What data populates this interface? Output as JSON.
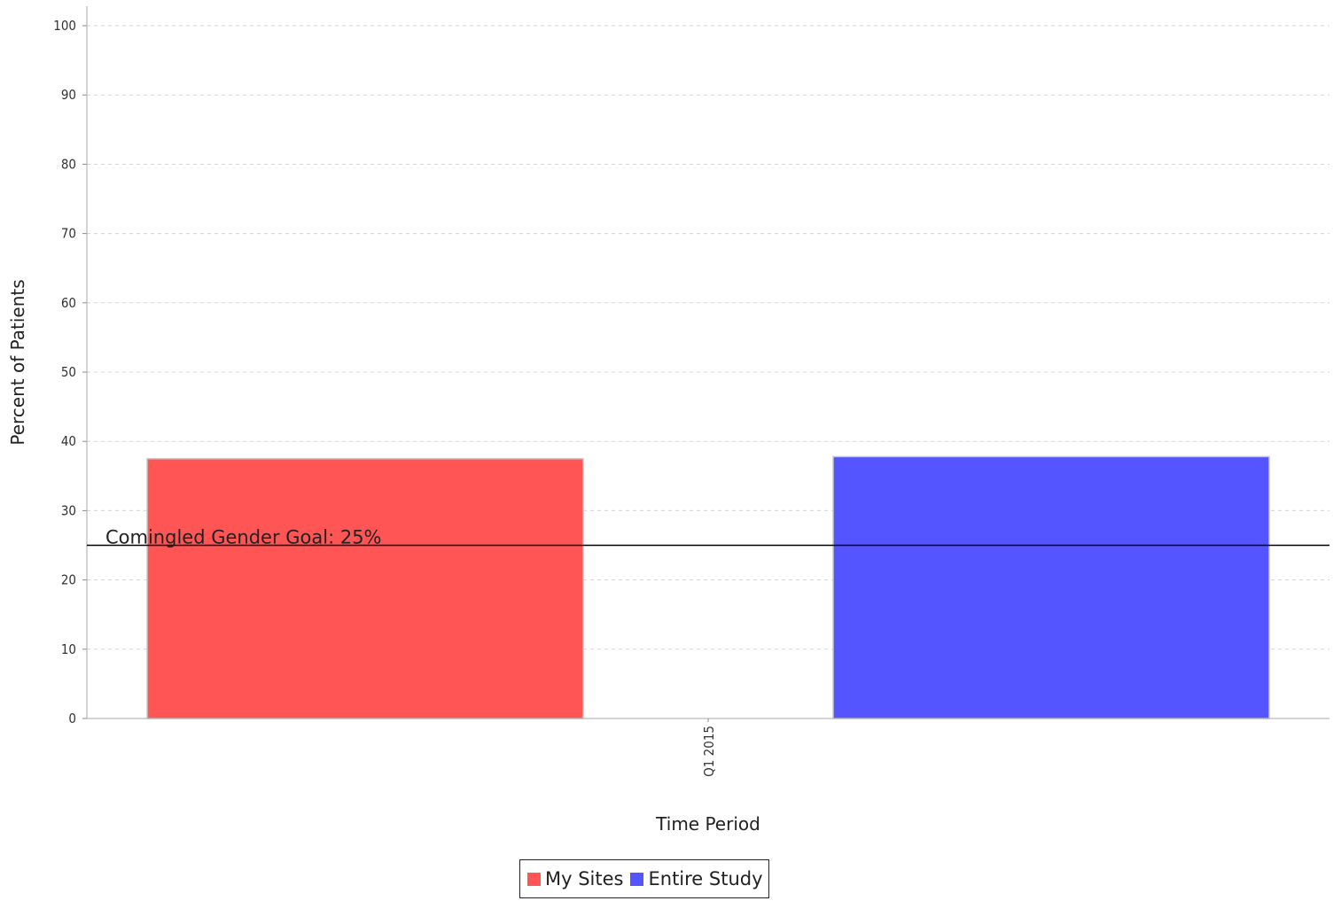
{
  "chart_data": {
    "type": "bar",
    "title": "",
    "xlabel": "Time Period",
    "ylabel": "Percent of Patients",
    "categories": [
      "Q1 2015"
    ],
    "series": [
      {
        "name": "My Sites",
        "values": [
          37.5
        ],
        "color": "#ff5555"
      },
      {
        "name": "Entire Study",
        "values": [
          37.8
        ],
        "color": "#5555ff"
      }
    ],
    "ylim": [
      0,
      100
    ],
    "yticks": [
      0,
      10,
      20,
      30,
      40,
      50,
      60,
      70,
      80,
      90,
      100
    ],
    "grid": true,
    "reference_line": {
      "value": 25,
      "label": "Comingled Gender Goal: 25%"
    },
    "legend_position": "bottom"
  }
}
